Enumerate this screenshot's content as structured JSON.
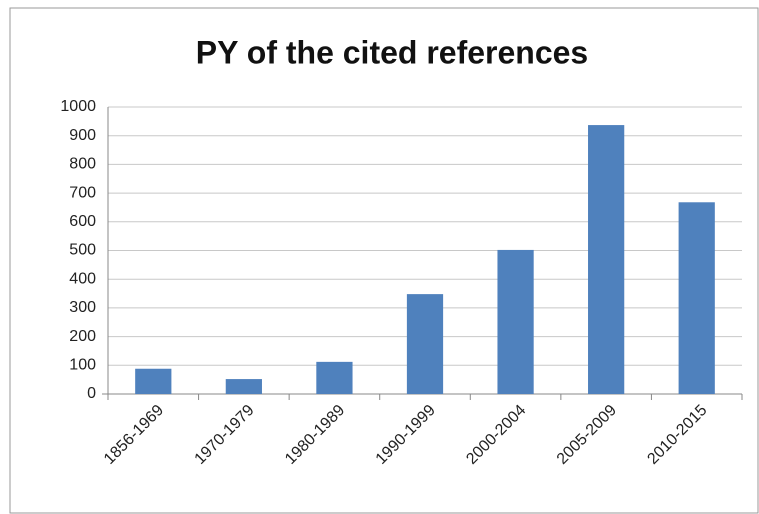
{
  "chart_data": {
    "type": "bar",
    "title": "PY of the cited references",
    "categories": [
      "1856-1969",
      "1970-1979",
      "1980-1989",
      "1990-1999",
      "2000-2004",
      "2005-2009",
      "2010-2015"
    ],
    "values": [
      88,
      52,
      112,
      348,
      502,
      937,
      668
    ],
    "color": "#4f81bd",
    "ylim": [
      0,
      1000
    ],
    "yticks": [
      0,
      100,
      200,
      300,
      400,
      500,
      600,
      700,
      800,
      900,
      1000
    ],
    "grid": true
  }
}
